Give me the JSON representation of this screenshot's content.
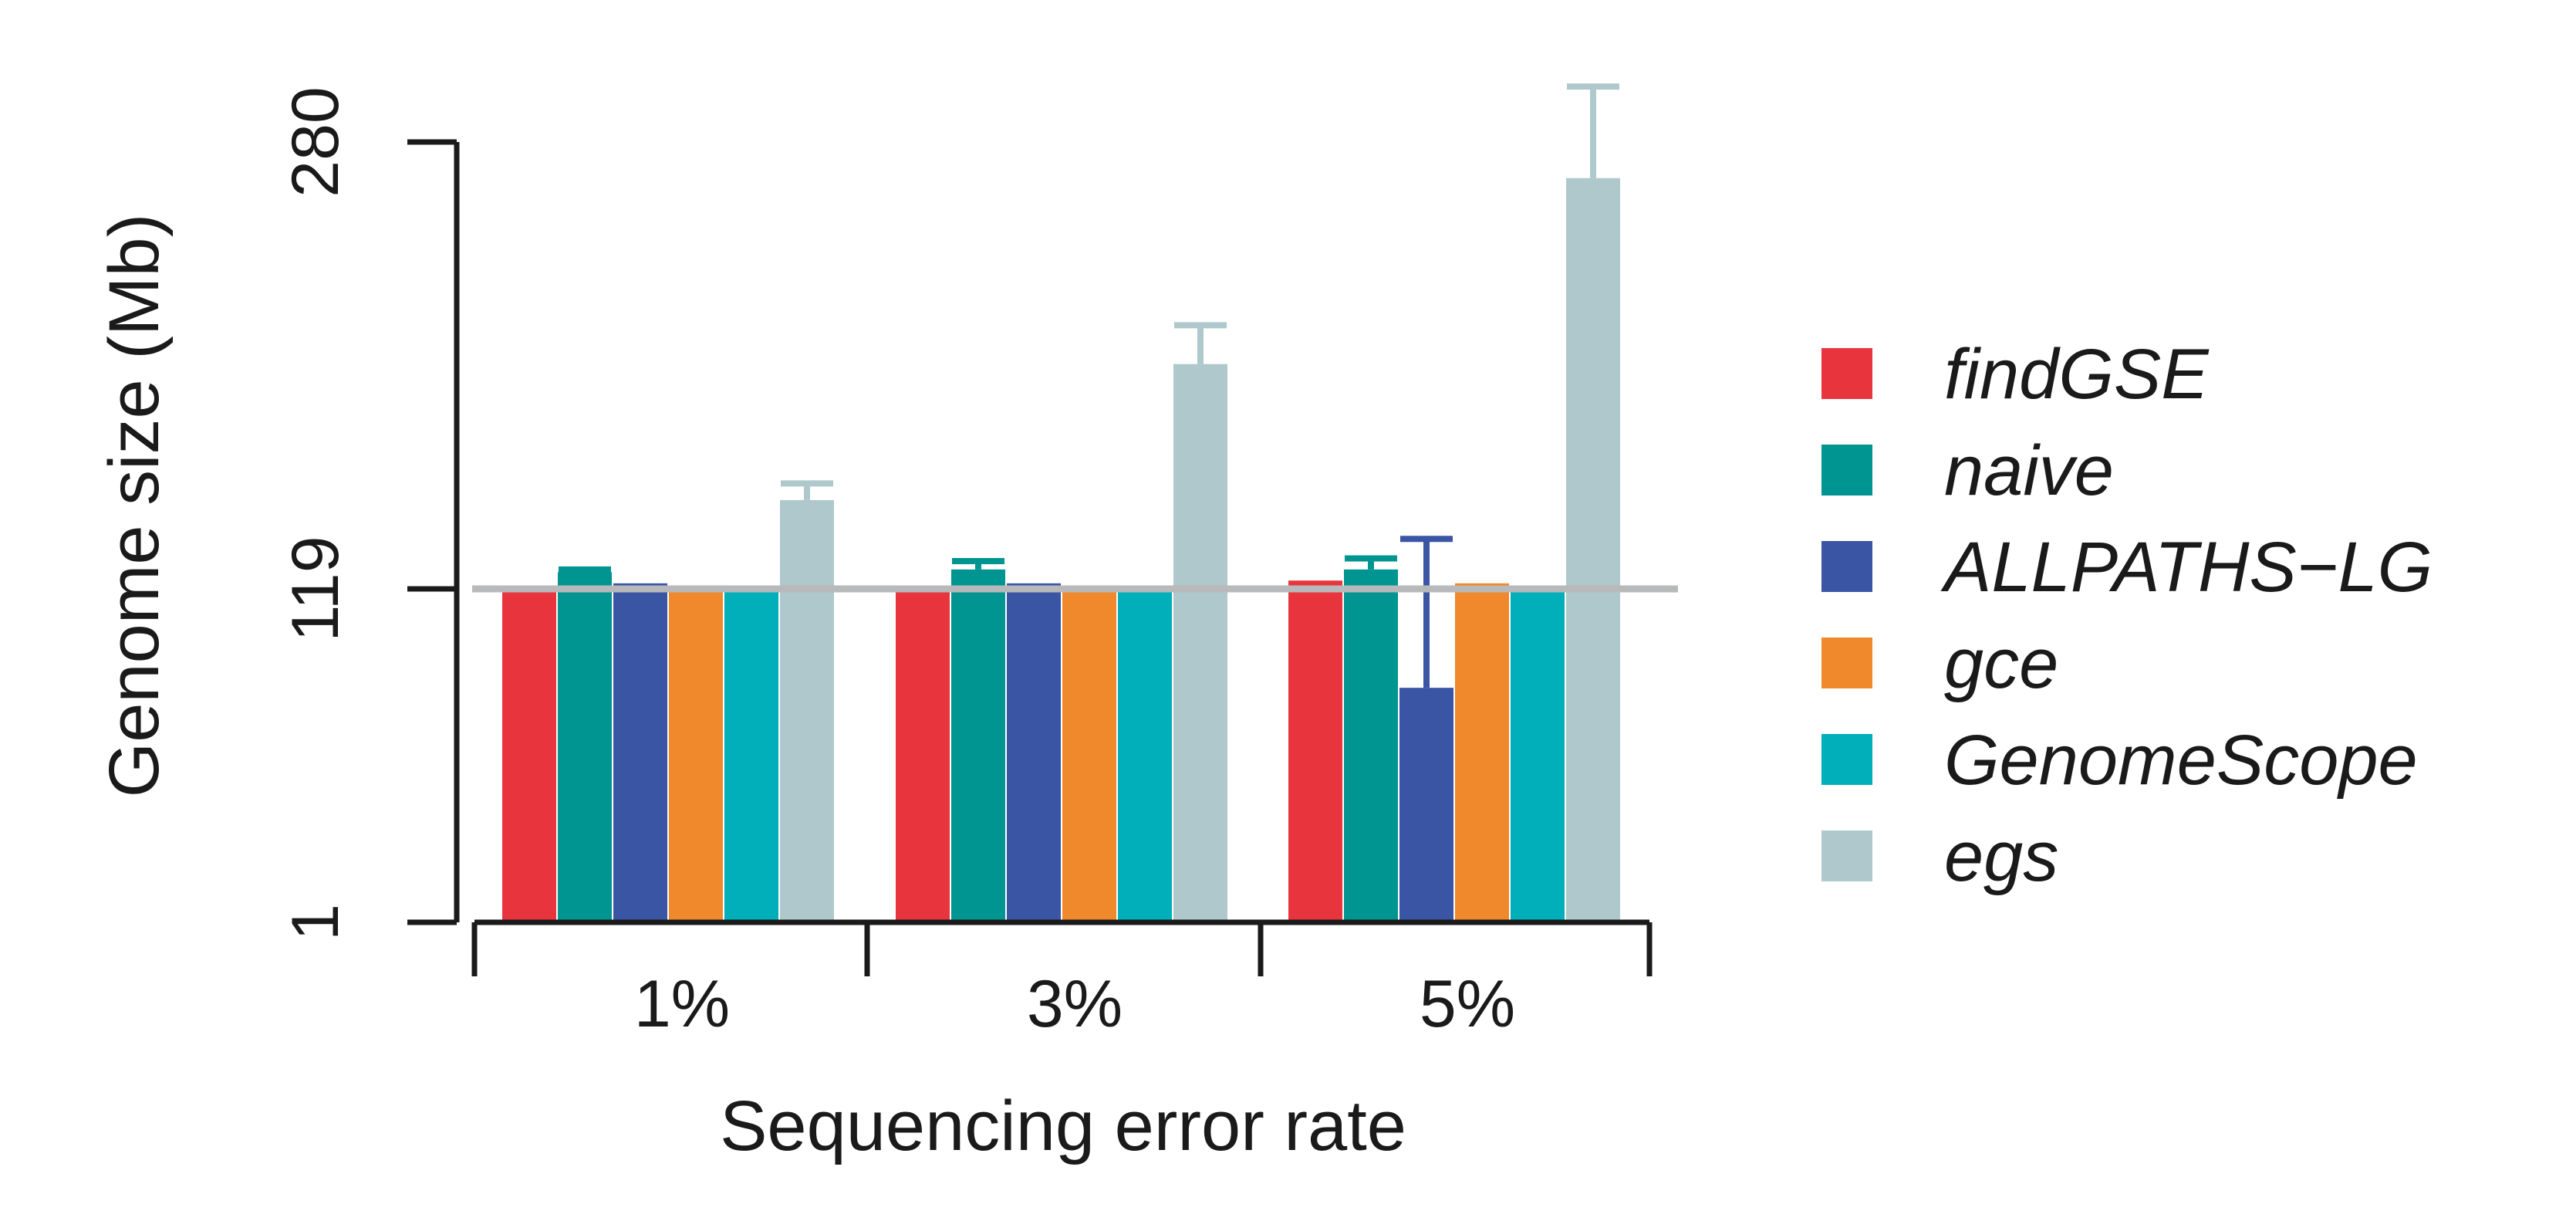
{
  "chart_data": {
    "type": "bar",
    "title": "",
    "xlabel": "Sequencing error rate",
    "ylabel": "Genome size (Mb)",
    "categories": [
      "1%",
      "3%",
      "5%"
    ],
    "yticks": [
      1,
      119,
      280
    ],
    "ylim": [
      1,
      280
    ],
    "reference_line": 119,
    "legend_position": "right",
    "grid": false,
    "series": [
      {
        "name": "findGSE",
        "color": "#e8353d",
        "values": [
          119,
          119,
          122
        ],
        "error": [
          0,
          0,
          0
        ]
      },
      {
        "name": "naive",
        "color": "#009591",
        "values": [
          125,
          126,
          126
        ],
        "error": [
          1,
          3,
          4
        ]
      },
      {
        "name": "ALLPATHS−LG",
        "color": "#3a55a4",
        "values": [
          121,
          121,
          84
        ],
        "error": [
          0,
          0,
          53
        ]
      },
      {
        "name": "gce",
        "color": "#f0892c",
        "values": [
          119,
          119,
          121
        ],
        "error": [
          0,
          0,
          0
        ]
      },
      {
        "name": "GenomeScope",
        "color": "#00afb9",
        "values": [
          119,
          119,
          119
        ],
        "error": [
          0,
          0,
          0
        ]
      },
      {
        "name": "egs",
        "color": "#afc8cb",
        "values": [
          151,
          200,
          267
        ],
        "error": [
          6,
          14,
          33
        ]
      }
    ]
  }
}
